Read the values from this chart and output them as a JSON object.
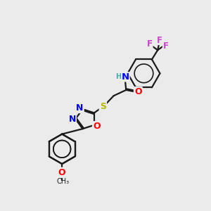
{
  "bg_color": "#ebebeb",
  "bond_color": "#1a1a1a",
  "line_width": 1.6,
  "atom_colors": {
    "N": "#0000ff",
    "O": "#ff0000",
    "S": "#b8b800",
    "F": "#cc44cc",
    "H": "#44aaaa",
    "C": "#1a1a1a"
  },
  "font_size": 8.5
}
